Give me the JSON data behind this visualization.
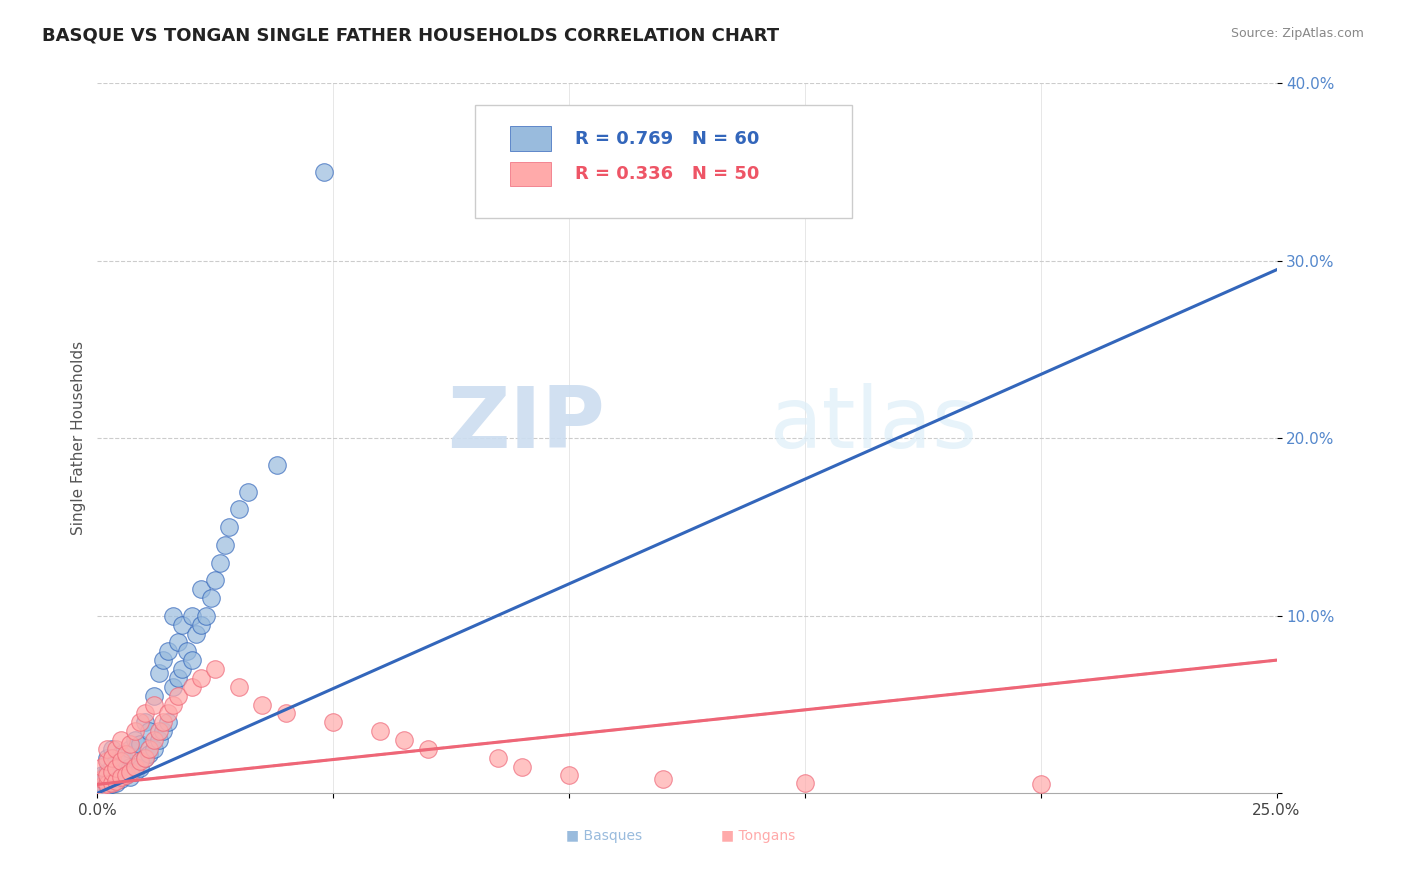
{
  "title": "BASQUE VS TONGAN SINGLE FATHER HOUSEHOLDS CORRELATION CHART",
  "source": "Source: ZipAtlas.com",
  "ylabel_label": "Single Father Households",
  "legend_r1": "R = 0.769",
  "legend_n1": "N = 60",
  "legend_r2": "R = 0.336",
  "legend_n2": "N = 50",
  "color_basque": "#99BBDD",
  "color_tongan": "#FFAAAA",
  "color_basque_line": "#3366BB",
  "color_tongan_line": "#EE6677",
  "watermark_zip": "ZIP",
  "watermark_atlas": "atlas",
  "xlim": [
    0.0,
    0.25
  ],
  "ylim": [
    0.0,
    0.4
  ],
  "basque_x": [
    0.001,
    0.001,
    0.001,
    0.002,
    0.002,
    0.002,
    0.002,
    0.003,
    0.003,
    0.003,
    0.003,
    0.004,
    0.004,
    0.004,
    0.005,
    0.005,
    0.005,
    0.006,
    0.006,
    0.007,
    0.007,
    0.007,
    0.008,
    0.008,
    0.009,
    0.009,
    0.01,
    0.01,
    0.011,
    0.011,
    0.012,
    0.012,
    0.013,
    0.013,
    0.014,
    0.014,
    0.015,
    0.015,
    0.016,
    0.016,
    0.017,
    0.017,
    0.018,
    0.018,
    0.019,
    0.02,
    0.02,
    0.021,
    0.022,
    0.022,
    0.023,
    0.024,
    0.025,
    0.026,
    0.027,
    0.028,
    0.03,
    0.032,
    0.038,
    0.048
  ],
  "basque_y": [
    0.003,
    0.006,
    0.01,
    0.004,
    0.007,
    0.012,
    0.02,
    0.005,
    0.009,
    0.015,
    0.025,
    0.006,
    0.011,
    0.018,
    0.008,
    0.013,
    0.022,
    0.01,
    0.018,
    0.009,
    0.015,
    0.025,
    0.012,
    0.03,
    0.014,
    0.028,
    0.02,
    0.04,
    0.022,
    0.035,
    0.025,
    0.055,
    0.03,
    0.068,
    0.035,
    0.075,
    0.04,
    0.08,
    0.06,
    0.1,
    0.065,
    0.085,
    0.07,
    0.095,
    0.08,
    0.075,
    0.1,
    0.09,
    0.095,
    0.115,
    0.1,
    0.11,
    0.12,
    0.13,
    0.14,
    0.15,
    0.16,
    0.17,
    0.185,
    0.35
  ],
  "tongan_x": [
    0.001,
    0.001,
    0.001,
    0.002,
    0.002,
    0.002,
    0.002,
    0.003,
    0.003,
    0.003,
    0.004,
    0.004,
    0.004,
    0.005,
    0.005,
    0.005,
    0.006,
    0.006,
    0.007,
    0.007,
    0.008,
    0.008,
    0.009,
    0.009,
    0.01,
    0.01,
    0.011,
    0.012,
    0.012,
    0.013,
    0.014,
    0.015,
    0.016,
    0.017,
    0.02,
    0.022,
    0.025,
    0.03,
    0.035,
    0.04,
    0.05,
    0.06,
    0.065,
    0.07,
    0.085,
    0.09,
    0.1,
    0.12,
    0.15,
    0.2
  ],
  "tongan_y": [
    0.004,
    0.008,
    0.015,
    0.005,
    0.01,
    0.018,
    0.025,
    0.006,
    0.012,
    0.02,
    0.007,
    0.014,
    0.025,
    0.009,
    0.018,
    0.03,
    0.01,
    0.022,
    0.012,
    0.028,
    0.015,
    0.035,
    0.018,
    0.04,
    0.02,
    0.045,
    0.025,
    0.03,
    0.05,
    0.035,
    0.04,
    0.045,
    0.05,
    0.055,
    0.06,
    0.065,
    0.07,
    0.06,
    0.05,
    0.045,
    0.04,
    0.035,
    0.03,
    0.025,
    0.02,
    0.015,
    0.01,
    0.008,
    0.006,
    0.005
  ],
  "basque_line_x": [
    0.0,
    0.25
  ],
  "basque_line_y": [
    0.0,
    0.295
  ],
  "tongan_line_x": [
    0.0,
    0.25
  ],
  "tongan_line_y": [
    0.005,
    0.075
  ]
}
